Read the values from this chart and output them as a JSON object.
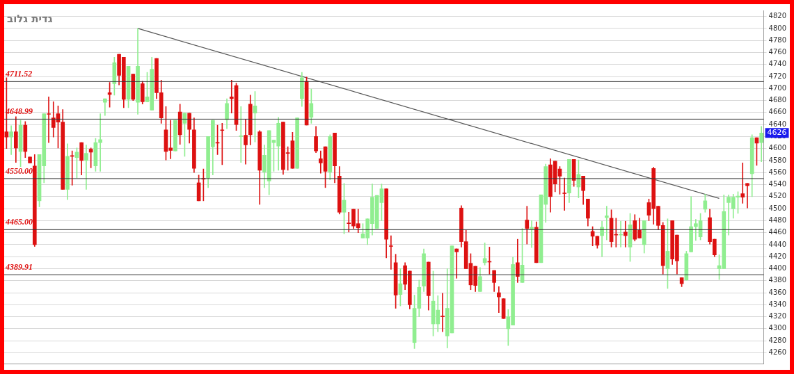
{
  "chart_data": {
    "type": "candlestick",
    "title": "גדית גלוב",
    "categories": [
      null,
      null,
      null,
      null,
      null,
      null,
      null,
      null,
      null,
      null,
      null,
      null,
      null,
      null,
      null,
      null,
      null,
      null,
      null,
      null,
      null,
      null,
      null,
      null,
      null,
      null,
      null,
      null,
      null,
      null,
      null,
      null,
      null,
      null,
      null,
      null,
      null,
      null,
      null,
      null,
      null,
      null,
      null,
      null,
      null,
      null,
      null,
      null,
      null,
      null,
      null,
      null,
      null,
      null,
      null,
      null,
      null,
      null,
      null,
      null,
      null,
      null,
      null,
      null,
      null,
      null,
      null,
      null,
      null,
      null,
      null,
      null,
      null,
      null,
      null,
      null,
      null,
      null,
      null,
      null,
      null,
      null,
      null,
      null,
      null,
      null,
      null,
      null,
      null,
      null,
      null,
      null,
      null,
      null,
      null,
      null,
      null,
      null,
      null,
      null,
      null,
      null,
      null,
      null,
      null,
      null,
      null,
      null,
      null,
      null,
      null,
      null,
      null,
      null,
      null,
      null,
      null,
      null,
      null,
      null,
      null,
      null,
      null,
      null,
      null,
      null,
      null,
      null,
      null,
      null,
      null,
      null,
      null,
      null,
      null,
      null,
      null,
      null,
      null,
      null,
      null,
      null,
      null,
      null,
      null,
      null,
      null,
      null,
      null,
      null,
      null,
      null,
      null,
      null,
      null,
      null,
      null,
      null,
      null,
      null,
      null,
      null
    ],
    "ohlc": [
      [
        4628,
        4718,
        4600,
        4619
      ],
      [
        4619,
        4638,
        4590,
        4628
      ],
      [
        4628,
        4653,
        4577,
        4601
      ],
      [
        4595,
        4647,
        4570,
        4639
      ],
      [
        4639,
        4645,
        4585,
        4595
      ],
      [
        4586,
        4586,
        4576,
        4576
      ],
      [
        4571,
        4590,
        4437,
        4440
      ],
      [
        4513,
        4590,
        4503,
        4590
      ],
      [
        4571,
        4658,
        4543,
        4658
      ],
      [
        4658,
        4686,
        4610,
        4657
      ],
      [
        4651,
        4678,
        4619,
        4635
      ],
      [
        4658,
        4671,
        4601,
        4644
      ],
      [
        4644,
        4665,
        4532,
        4532
      ],
      [
        4532,
        4608,
        4515,
        4587
      ],
      [
        4588,
        4596,
        4539,
        4587
      ],
      [
        4585,
        4601,
        4551,
        4594
      ],
      [
        4610,
        4610,
        4556,
        4580
      ],
      [
        4580,
        4606,
        4532,
        4592
      ],
      [
        4599,
        4601,
        4568,
        4594
      ],
      [
        4571,
        4617,
        4562,
        4610
      ],
      [
        4610,
        4658,
        4562,
        4615
      ],
      [
        4677,
        4683,
        4655,
        4683
      ],
      [
        4693,
        4710,
        4669,
        4690
      ],
      [
        4708,
        4752,
        4689,
        4743
      ],
      [
        4757,
        4757,
        4706,
        4722
      ],
      [
        4752,
        4752,
        4668,
        4682
      ],
      [
        4682,
        4737,
        4668,
        4737
      ],
      [
        4724,
        4724,
        4680,
        4682
      ],
      [
        4677,
        4800,
        4657,
        4737
      ],
      [
        4708,
        4712,
        4674,
        4678
      ],
      [
        4678,
        4727,
        4678,
        4686
      ],
      [
        4664,
        4752,
        4664,
        4732
      ],
      [
        4750,
        4750,
        4683,
        4693
      ],
      [
        4693,
        4714,
        4642,
        4651
      ],
      [
        4631,
        4670,
        4581,
        4595
      ],
      [
        4601,
        4647,
        4583,
        4597
      ],
      [
        4596,
        4647,
        4596,
        4647
      ],
      [
        4661,
        4674,
        4607,
        4623
      ],
      [
        4642,
        4659,
        4587,
        4659
      ],
      [
        4659,
        4659,
        4609,
        4632
      ],
      [
        4631,
        4651,
        4560,
        4567
      ],
      [
        4543,
        4556,
        4513,
        4513
      ],
      [
        4550,
        4566,
        4513,
        4549
      ],
      [
        4551,
        4620,
        4535,
        4620
      ],
      [
        4603,
        4647,
        4556,
        4647
      ],
      [
        4610,
        4639,
        4590,
        4609
      ],
      [
        4631,
        4642,
        4573,
        4630
      ],
      [
        4648,
        4683,
        4633,
        4675
      ],
      [
        4686,
        4714,
        4659,
        4683
      ],
      [
        4705,
        4709,
        4630,
        4640
      ],
      [
        4620,
        4670,
        4577,
        4621
      ],
      [
        4622,
        4649,
        4574,
        4606
      ],
      [
        4674,
        4689,
        4606,
        4623
      ],
      [
        4659,
        4695,
        4611,
        4671
      ],
      [
        4628,
        4630,
        4507,
        4564
      ],
      [
        4561,
        4606,
        4535,
        4589
      ],
      [
        4546,
        4630,
        4523,
        4630
      ],
      [
        4610,
        4614,
        4562,
        4614
      ],
      [
        4604,
        4652,
        4564,
        4642
      ],
      [
        4644,
        4644,
        4557,
        4565
      ],
      [
        4593,
        4603,
        4564,
        4592
      ],
      [
        4613,
        4627,
        4567,
        4567
      ],
      [
        4567,
        4651,
        4567,
        4651
      ],
      [
        4683,
        4727,
        4670,
        4718
      ],
      [
        4712,
        4719,
        4639,
        4639
      ],
      [
        4652,
        4699,
        4642,
        4675
      ],
      [
        4620,
        4637,
        4593,
        4596
      ],
      [
        4583,
        4596,
        4559,
        4576
      ],
      [
        4603,
        4603,
        4535,
        4562
      ],
      [
        4561,
        4623,
        4548,
        4620
      ],
      [
        4626,
        4626,
        4543,
        4571
      ],
      [
        4554,
        4570,
        4491,
        4494
      ],
      [
        4494,
        4542,
        4458,
        4514
      ],
      [
        4476,
        4494,
        4461,
        4475
      ],
      [
        4499,
        4499,
        4467,
        4471
      ],
      [
        4475,
        4499,
        4460,
        4468
      ],
      [
        4451,
        4475,
        4451,
        4458
      ],
      [
        4451,
        4483,
        4440,
        4483
      ],
      [
        4475,
        4541,
        4456,
        4519
      ],
      [
        4467,
        4522,
        4467,
        4522
      ],
      [
        4510,
        4541,
        4480,
        4533
      ],
      [
        4533,
        4533,
        4418,
        4449
      ],
      [
        4438,
        4455,
        4399,
        4437
      ],
      [
        4410,
        4424,
        4334,
        4356
      ],
      [
        4357,
        4400,
        4338,
        4375
      ],
      [
        4405,
        4410,
        4365,
        4374
      ],
      [
        4396,
        4396,
        4333,
        4340
      ],
      [
        4277,
        4356,
        4267,
        4334
      ],
      [
        4334,
        4381,
        4320,
        4369
      ],
      [
        4371,
        4433,
        4362,
        4425
      ],
      [
        4411,
        4411,
        4331,
        4355
      ],
      [
        4308,
        4396,
        4288,
        4346
      ],
      [
        4308,
        4355,
        4295,
        4331
      ],
      [
        4321,
        4359,
        4295,
        4320
      ],
      [
        4288,
        4400,
        4268,
        4334
      ],
      [
        4293,
        4438,
        4293,
        4438
      ],
      [
        4433,
        4433,
        4384,
        4428
      ],
      [
        4501,
        4505,
        4436,
        4445
      ],
      [
        4445,
        4464,
        4400,
        4400
      ],
      [
        4409,
        4425,
        4365,
        4373
      ],
      [
        4404,
        4404,
        4362,
        4372
      ],
      [
        4362,
        4402,
        4362,
        4387
      ],
      [
        4410,
        4443,
        4406,
        4417
      ],
      [
        4411,
        4436,
        4391,
        4411
      ],
      [
        4397,
        4397,
        4362,
        4377
      ],
      [
        4360,
        4370,
        4327,
        4353
      ],
      [
        4350,
        4350,
        4317,
        4317
      ],
      [
        4300,
        4332,
        4272,
        4320
      ],
      [
        4306,
        4419,
        4306,
        4407
      ],
      [
        4410,
        4449,
        4377,
        4387
      ],
      [
        4377,
        4467,
        4377,
        4406
      ],
      [
        4481,
        4504,
        4441,
        4467
      ],
      [
        4466,
        4480,
        4435,
        4469
      ],
      [
        4469,
        4478,
        4410,
        4410
      ],
      [
        4410,
        4523,
        4410,
        4523
      ],
      [
        4507,
        4574,
        4477,
        4570
      ],
      [
        4573,
        4583,
        4494,
        4520
      ],
      [
        4579,
        4579,
        4528,
        4541
      ],
      [
        4566,
        4570,
        4524,
        4554
      ],
      [
        4526,
        4551,
        4497,
        4525
      ],
      [
        4526,
        4582,
        4510,
        4582
      ],
      [
        4582,
        4582,
        4537,
        4547
      ],
      [
        4536,
        4581,
        4518,
        4557
      ],
      [
        4554,
        4554,
        4507,
        4530
      ],
      [
        4516,
        4516,
        4471,
        4484
      ],
      [
        4462,
        4470,
        4438,
        4454
      ],
      [
        4454,
        4454,
        4434,
        4439
      ],
      [
        4455,
        4479,
        4420,
        4469
      ],
      [
        4485,
        4504,
        4448,
        4488
      ],
      [
        4484,
        4498,
        4436,
        4445
      ],
      [
        4457,
        4484,
        4436,
        4456
      ],
      [
        4456,
        4479,
        4436,
        4457
      ],
      [
        4461,
        4479,
        4436,
        4455
      ],
      [
        4436,
        4492,
        4412,
        4473
      ],
      [
        4480,
        4490,
        4446,
        4449
      ],
      [
        4464,
        4484,
        4451,
        4451
      ],
      [
        4440,
        4480,
        4426,
        4480
      ],
      [
        4510,
        4516,
        4480,
        4489
      ],
      [
        4567,
        4569,
        4474,
        4500
      ],
      [
        4504,
        4504,
        4465,
        4472
      ],
      [
        4472,
        4477,
        4391,
        4405
      ],
      [
        4400,
        4483,
        4367,
        4429
      ],
      [
        4480,
        4480,
        4407,
        4416
      ],
      [
        4456,
        4456,
        4391,
        4413
      ],
      [
        4385,
        4385,
        4370,
        4375
      ],
      [
        4381,
        4429,
        4381,
        4425
      ],
      [
        4428,
        4520,
        4428,
        4470
      ],
      [
        4470,
        4482,
        4447,
        4475
      ],
      [
        4453,
        4492,
        4448,
        4480
      ],
      [
        4499,
        4524,
        4494,
        4513
      ],
      [
        4485,
        4499,
        4441,
        4445
      ],
      [
        4449,
        4449,
        4420,
        4423
      ],
      [
        4400,
        4423,
        4382,
        4405
      ],
      [
        4400,
        4523,
        4400,
        4495
      ],
      [
        4510,
        4523,
        4456,
        4519
      ],
      [
        4500,
        4524,
        4484,
        4519
      ],
      [
        4519,
        4528,
        4492,
        4521
      ],
      [
        4525,
        4576,
        4509,
        4519
      ],
      [
        4542,
        4542,
        4501,
        4538
      ],
      [
        4558,
        4623,
        4520,
        4618
      ],
      [
        4618,
        4618,
        4572,
        4609
      ],
      [
        4610,
        4637,
        4578,
        4626
      ]
    ],
    "colors": [
      "#dd1111",
      "#90ee90",
      "#dd1111",
      "#90ee90",
      "#dd1111",
      "#dd1111",
      "#dd1111",
      "#90ee90",
      "#90ee90",
      "#dd1111",
      "#dd1111",
      "#dd1111",
      "#dd1111",
      "#90ee90",
      "#dd1111",
      "#90ee90",
      "#dd1111",
      "#90ee90",
      "#dd1111",
      "#90ee90",
      "#90ee90",
      "#90ee90",
      "#dd1111",
      "#90ee90",
      "#dd1111",
      "#dd1111",
      "#90ee90",
      "#dd1111",
      "#90ee90",
      "#dd1111",
      "#90ee90",
      "#90ee90",
      "#dd1111",
      "#dd1111",
      "#dd1111",
      "#dd1111",
      "#90ee90",
      "#dd1111",
      "#90ee90",
      "#dd1111",
      "#dd1111",
      "#dd1111",
      "#dd1111",
      "#90ee90",
      "#90ee90",
      "#dd1111",
      "#dd1111",
      "#90ee90",
      "#dd1111",
      "#dd1111",
      "#90ee90",
      "#dd1111",
      "#dd1111",
      "#90ee90",
      "#dd1111",
      "#90ee90",
      "#90ee90",
      "#90ee90",
      "#90ee90",
      "#dd1111",
      "#dd1111",
      "#dd1111",
      "#90ee90",
      "#90ee90",
      "#dd1111",
      "#90ee90",
      "#dd1111",
      "#dd1111",
      "#dd1111",
      "#90ee90",
      "#dd1111",
      "#dd1111",
      "#90ee90",
      "#dd1111",
      "#dd1111",
      "#dd1111",
      "#90ee90",
      "#90ee90",
      "#90ee90",
      "#90ee90",
      "#90ee90",
      "#dd1111",
      "#dd1111",
      "#dd1111",
      "#90ee90",
      "#dd1111",
      "#dd1111",
      "#90ee90",
      "#90ee90",
      "#90ee90",
      "#dd1111",
      "#90ee90",
      "#90ee90",
      "#dd1111",
      "#90ee90",
      "#90ee90",
      "#dd1111",
      "#dd1111",
      "#dd1111",
      "#dd1111",
      "#dd1111",
      "#90ee90",
      "#90ee90",
      "#dd1111",
      "#dd1111",
      "#dd1111",
      "#dd1111",
      "#90ee90",
      "#90ee90",
      "#dd1111",
      "#90ee90",
      "#dd1111",
      "#90ee90",
      "#dd1111",
      "#90ee90",
      "#90ee90",
      "#dd1111",
      "#dd1111",
      "#dd1111",
      "#dd1111",
      "#90ee90",
      "#dd1111",
      "#90ee90",
      "#dd1111",
      "#dd1111",
      "#dd1111",
      "#dd1111",
      "#90ee90",
      "#90ee90",
      "#dd1111",
      "#dd1111",
      "#90ee90",
      "#dd1111",
      "#90ee90",
      "#dd1111",
      "#dd1111",
      "#90ee90",
      "#dd1111",
      "#dd1111",
      "#dd1111",
      "#dd1111",
      "#90ee90",
      "#dd1111",
      "#dd1111",
      "#dd1111",
      "#90ee90",
      "#90ee90",
      "#90ee90",
      "#90ee90",
      "#90ee90",
      "#dd1111",
      "#dd1111",
      "#90ee90",
      "#90ee90",
      "#90ee90",
      "#90ee90",
      "#90ee90",
      "#dd1111",
      "#dd1111",
      "#90ee90",
      "#dd1111",
      "#90ee90"
    ],
    "series": [
      {
        "type": "line",
        "color": "#555555",
        "values": [
          null,
          null,
          null,
          null,
          null,
          null,
          null,
          null,
          null,
          null,
          null,
          null,
          null,
          null,
          null,
          null,
          null,
          null,
          null,
          null,
          null,
          null,
          null,
          null,
          null,
          null,
          null,
          null,
          4800,
          null,
          null,
          null,
          null,
          null,
          null,
          null,
          null,
          null,
          null,
          null,
          null,
          null,
          null,
          null,
          null,
          null,
          null,
          null,
          null,
          null,
          null,
          null,
          null,
          null,
          null,
          null,
          null,
          null,
          null,
          null,
          null,
          null,
          null,
          null,
          null,
          null,
          null,
          null,
          null,
          null,
          null,
          null,
          null,
          null,
          null,
          null,
          null,
          null,
          null,
          null,
          null,
          null,
          null,
          null,
          null,
          null,
          null,
          null,
          null,
          null,
          null,
          null,
          null,
          null,
          null,
          null,
          null,
          null,
          null,
          null,
          null,
          null,
          null,
          null,
          null,
          null,
          null,
          null,
          null,
          null,
          null,
          null,
          null,
          null,
          null,
          null,
          null,
          null,
          null,
          null,
          null,
          null,
          null,
          null,
          null,
          null,
          null,
          null,
          null,
          null,
          null,
          null,
          null,
          null,
          null,
          null,
          null,
          null,
          null,
          null,
          null,
          null,
          null,
          null,
          null,
          null,
          null,
          null,
          null,
          null,
          null,
          null,
          4517,
          null,
          null,
          null,
          null,
          null,
          null,
          null,
          null,
          null
        ]
      }
    ],
    "ylim": [
      4242,
      4830
    ],
    "yticks": [
      4260,
      4280,
      4300,
      4320,
      4340,
      4360,
      4380,
      4400,
      4420,
      4440,
      4460,
      4480,
      4500,
      4520,
      4540,
      4560,
      4580,
      4600,
      4620,
      4640,
      4660,
      4680,
      4700,
      4720,
      4740,
      4760,
      4780,
      4800,
      4820
    ],
    "ref_lines": [
      {
        "axis": "y",
        "value": 4711.52,
        "label": "4711.52",
        "color": "#333333"
      },
      {
        "axis": "y",
        "value": 4648.99,
        "label": "4648.99",
        "color": "#333333"
      },
      {
        "axis": "y",
        "value": 4550.0,
        "label": "4550.00",
        "color": "#333333"
      },
      {
        "axis": "y",
        "value": 4465.0,
        "label": "4465.00",
        "color": "#333333"
      },
      {
        "axis": "y",
        "value": 4389.91,
        "label": "4389.91",
        "color": "#333333"
      }
    ],
    "annotations": [
      {
        "text": "4626",
        "y": 4626
      }
    ],
    "grid": "y",
    "legend": false,
    "tick_labels": "y"
  }
}
